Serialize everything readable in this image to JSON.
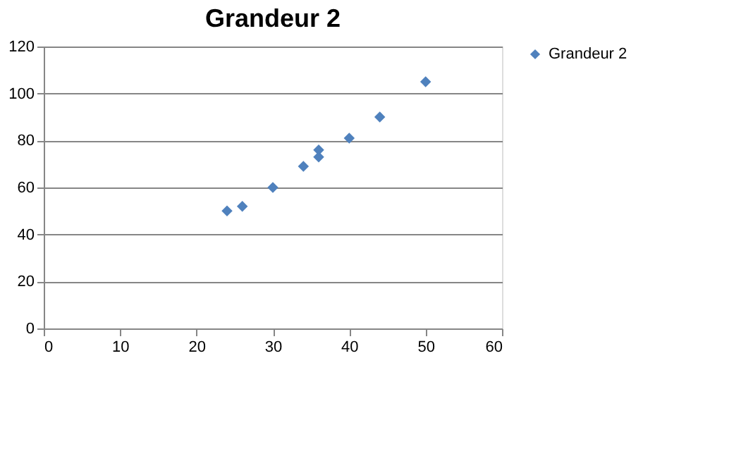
{
  "chart_data": {
    "type": "scatter",
    "title": "Grandeur 2",
    "x": [
      24,
      26,
      30,
      34,
      36,
      36,
      40,
      44,
      50
    ],
    "series": [
      {
        "name": "Grandeur 2",
        "color": "#4f81bd",
        "values": [
          50,
          52,
          60,
          69,
          76,
          73,
          81,
          90,
          105
        ]
      }
    ],
    "xlim": [
      0,
      60
    ],
    "xticks": [
      0,
      10,
      20,
      30,
      40,
      50,
      60
    ],
    "ylim": [
      0,
      120
    ],
    "yticks": [
      0,
      20,
      40,
      60,
      80,
      100,
      120
    ],
    "grid": "y",
    "legend": "right",
    "marker": "diamond"
  }
}
